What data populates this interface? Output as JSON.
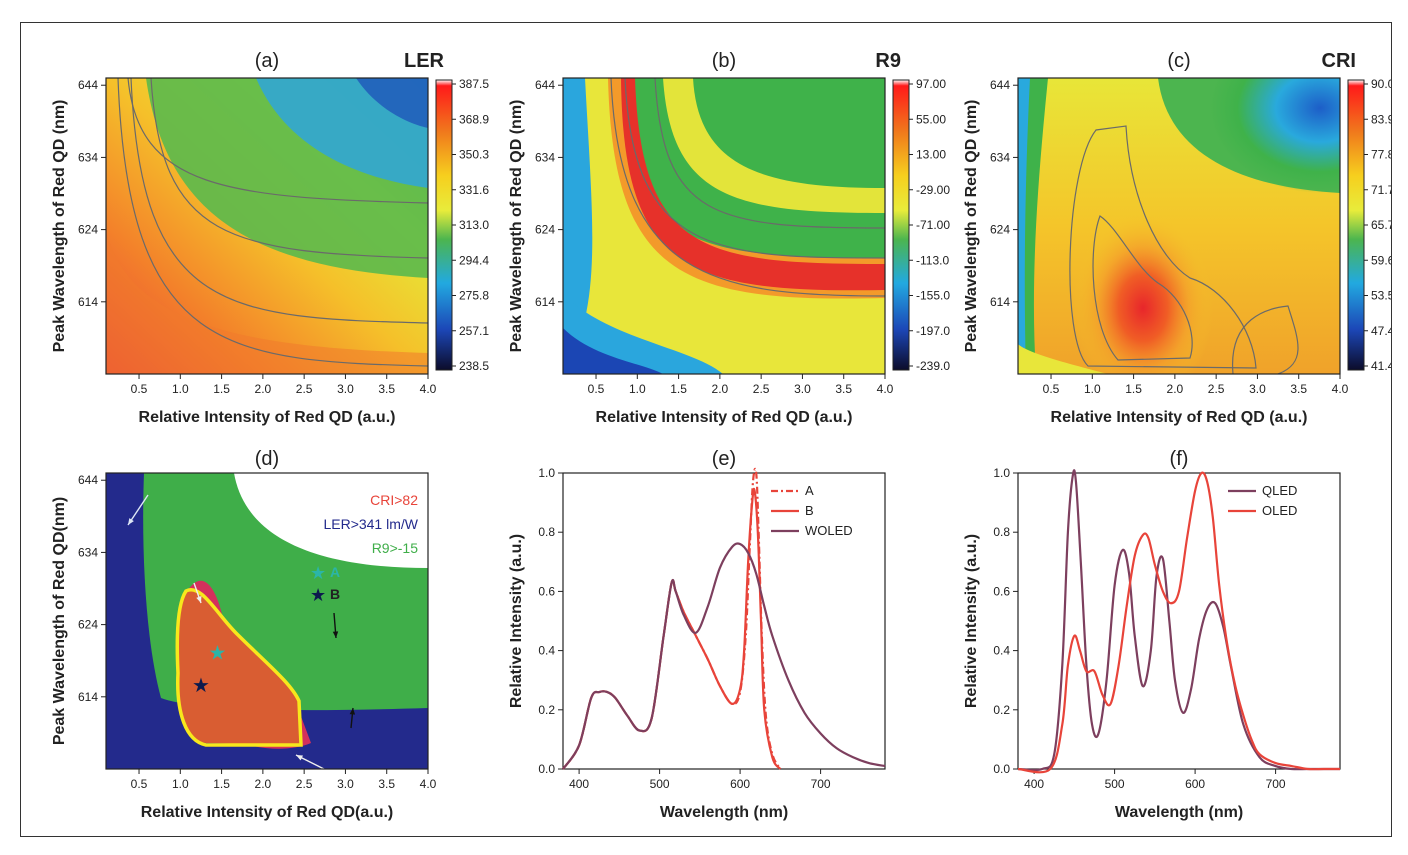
{
  "colors": {
    "red": "#e8443a",
    "purple": "#7d3f5e",
    "white_region": "#ffffff",
    "blue_region": "#232a8c",
    "green_region": "#3fae49",
    "orange_region": "#d95d32",
    "pink_region": "#d4305c",
    "outline": "#f7e81c",
    "star_a": "#2bb5a8",
    "star_b": "#0c1a4d"
  },
  "chart_data": [
    {
      "id": "a",
      "type": "heatmap",
      "panel_label": "(a)",
      "title": "LER",
      "xlabel": "Relative Intensity of Red QD (a.u.)",
      "ylabel": "Peak Wavelength of Red QD (nm)",
      "xlim": [
        0.1,
        4.0
      ],
      "ylim": [
        604,
        645
      ],
      "x_ticks": [
        "0.5",
        "1.0",
        "1.5",
        "2.0",
        "2.5",
        "3.0",
        "3.5",
        "4.0"
      ],
      "y_ticks": [
        "614",
        "624",
        "634",
        "644"
      ],
      "colorbar_ticks": [
        "387.5",
        "368.9",
        "350.3",
        "331.6",
        "313.0",
        "294.4",
        "275.8",
        "257.1",
        "238.5"
      ]
    },
    {
      "id": "b",
      "type": "heatmap",
      "panel_label": "(b)",
      "title": "R9",
      "xlabel": "Relative Intensity of Red QD (a.u.)",
      "ylabel": "Peak Wavelength of Red QD (nm)",
      "xlim": [
        0.1,
        4.0
      ],
      "ylim": [
        604,
        645
      ],
      "x_ticks": [
        "0.5",
        "1.0",
        "1.5",
        "2.0",
        "2.5",
        "3.0",
        "3.5",
        "4.0"
      ],
      "y_ticks": [
        "614",
        "624",
        "634",
        "644"
      ],
      "colorbar_ticks": [
        "97.00",
        "55.00",
        "13.00",
        "-29.00",
        "-71.00",
        "-113.0",
        "-155.0",
        "-197.0",
        "-239.0"
      ]
    },
    {
      "id": "c",
      "type": "heatmap",
      "panel_label": "(c)",
      "title": "CRI",
      "xlabel": "Relative Intensity of Red QD (a.u.)",
      "ylabel": "Peak Wavelength of Red QD (nm)",
      "xlim": [
        0.1,
        4.0
      ],
      "ylim": [
        604,
        645
      ],
      "x_ticks": [
        "0.5",
        "1.0",
        "1.5",
        "2.0",
        "2.5",
        "3.0",
        "3.5",
        "4.0"
      ],
      "y_ticks": [
        "614",
        "624",
        "634",
        "644"
      ],
      "colorbar_ticks": [
        "90.00",
        "83.93",
        "77.85",
        "71.78",
        "65.70",
        "59.63",
        "53.55",
        "47.48",
        "41.40"
      ]
    },
    {
      "id": "d",
      "type": "area",
      "panel_label": "(d)",
      "xlabel": "Relative Intensity of Red QD(a.u.)",
      "ylabel": "Peak Wavelength of Red QD(nm)",
      "xlim": [
        0.1,
        4.0
      ],
      "ylim": [
        604,
        645
      ],
      "x_ticks": [
        "0.5",
        "1.0",
        "1.5",
        "2.0",
        "2.5",
        "3.0",
        "3.5",
        "4.0"
      ],
      "y_ticks": [
        "614",
        "624",
        "634",
        "644"
      ],
      "legend": [
        {
          "label": "CRI>82",
          "color": "#e8443a"
        },
        {
          "label": "LER>341 lm/W",
          "color": "#232a8c"
        },
        {
          "label": "R9>-15",
          "color": "#3fae49"
        },
        {
          "label": "A",
          "color": "#2bb5a8"
        },
        {
          "label": "B",
          "color": "#0c1a4d"
        }
      ],
      "points": [
        {
          "name": "A",
          "x": 1.45,
          "y": 620
        },
        {
          "name": "B",
          "x": 1.25,
          "y": 615.5
        }
      ],
      "legend_position": "top-right"
    },
    {
      "id": "e",
      "type": "line",
      "panel_label": "(e)",
      "xlabel": "Wavelength (nm)",
      "ylabel": "Relative Intensity (a.u.)",
      "xlim": [
        380,
        780
      ],
      "ylim": [
        0,
        1.0
      ],
      "x_ticks": [
        "400",
        "500",
        "600",
        "700"
      ],
      "y_ticks": [
        "0.0",
        "0.2",
        "0.4",
        "0.6",
        "0.8",
        "1.0"
      ],
      "legend_position": "top-right",
      "series": [
        {
          "name": "A",
          "color": "#e8443a",
          "style": "dashdot",
          "x": [
            380,
            400,
            415,
            425,
            435,
            445,
            460,
            475,
            490,
            505,
            515,
            520,
            530,
            545,
            560,
            575,
            590,
            600,
            607,
            612,
            616,
            620,
            623,
            627,
            632,
            640,
            650
          ],
          "y": [
            0.0,
            0.08,
            0.24,
            0.26,
            0.26,
            0.24,
            0.18,
            0.13,
            0.17,
            0.45,
            0.63,
            0.6,
            0.53,
            0.45,
            0.37,
            0.28,
            0.22,
            0.26,
            0.45,
            0.75,
            0.97,
            1.0,
            0.8,
            0.45,
            0.18,
            0.05,
            0.0
          ]
        },
        {
          "name": "B",
          "color": "#e8443a",
          "style": "solid",
          "x": [
            380,
            400,
            415,
            425,
            435,
            445,
            460,
            475,
            490,
            505,
            515,
            520,
            530,
            545,
            560,
            575,
            590,
            600,
            605,
            610,
            615,
            618,
            622,
            626,
            630,
            640,
            650
          ],
          "y": [
            0.0,
            0.08,
            0.24,
            0.26,
            0.26,
            0.24,
            0.18,
            0.13,
            0.17,
            0.45,
            0.63,
            0.6,
            0.53,
            0.45,
            0.37,
            0.28,
            0.22,
            0.27,
            0.4,
            0.7,
            0.9,
            0.94,
            0.8,
            0.5,
            0.2,
            0.04,
            0.0
          ]
        },
        {
          "name": "WOLED",
          "color": "#7d3f5e",
          "style": "solid",
          "x": [
            380,
            400,
            415,
            425,
            435,
            445,
            460,
            475,
            490,
            505,
            515,
            520,
            530,
            545,
            560,
            575,
            590,
            600,
            610,
            620,
            630,
            640,
            660,
            680,
            700,
            720,
            740,
            760,
            780
          ],
          "y": [
            0.0,
            0.08,
            0.24,
            0.26,
            0.26,
            0.24,
            0.18,
            0.13,
            0.17,
            0.45,
            0.63,
            0.6,
            0.52,
            0.46,
            0.55,
            0.68,
            0.75,
            0.76,
            0.73,
            0.66,
            0.55,
            0.45,
            0.3,
            0.19,
            0.12,
            0.07,
            0.04,
            0.02,
            0.01
          ]
        }
      ]
    },
    {
      "id": "f",
      "type": "line",
      "panel_label": "(f)",
      "xlabel": "Wavelength (nm)",
      "ylabel": "Relative Intensity (a.u.)",
      "xlim": [
        380,
        780
      ],
      "ylim": [
        0,
        1.0
      ],
      "x_ticks": [
        "400",
        "500",
        "600",
        "700"
      ],
      "y_ticks": [
        "0.0",
        "0.2",
        "0.4",
        "0.6",
        "0.8",
        "1.0"
      ],
      "legend_position": "top-right",
      "series": [
        {
          "name": "QLED",
          "color": "#7d3f5e",
          "style": "solid",
          "x": [
            380,
            410,
            425,
            435,
            442,
            448,
            452,
            458,
            465,
            472,
            480,
            490,
            500,
            510,
            518,
            525,
            535,
            545,
            552,
            560,
            568,
            575,
            585,
            595,
            605,
            615,
            625,
            635,
            645,
            660,
            680,
            700,
            720,
            740,
            760,
            780
          ],
          "y": [
            0.0,
            0.0,
            0.05,
            0.35,
            0.8,
            0.99,
            0.97,
            0.7,
            0.35,
            0.15,
            0.12,
            0.3,
            0.62,
            0.74,
            0.66,
            0.45,
            0.28,
            0.4,
            0.65,
            0.71,
            0.5,
            0.3,
            0.19,
            0.27,
            0.44,
            0.54,
            0.56,
            0.48,
            0.34,
            0.15,
            0.04,
            0.01,
            0.0,
            0.0,
            0.0,
            0.0
          ]
        },
        {
          "name": "OLED",
          "color": "#e8443a",
          "style": "solid",
          "x": [
            380,
            420,
            435,
            442,
            450,
            457,
            465,
            475,
            485,
            495,
            505,
            515,
            525,
            535,
            542,
            550,
            560,
            570,
            580,
            590,
            600,
            608,
            615,
            622,
            630,
            640,
            650,
            660,
            670,
            680,
            700,
            720,
            740,
            760,
            780
          ],
          "y": [
            0.0,
            0.0,
            0.15,
            0.35,
            0.45,
            0.4,
            0.33,
            0.33,
            0.25,
            0.22,
            0.35,
            0.55,
            0.72,
            0.79,
            0.78,
            0.69,
            0.6,
            0.56,
            0.6,
            0.78,
            0.94,
            1.0,
            0.97,
            0.85,
            0.62,
            0.42,
            0.28,
            0.18,
            0.1,
            0.05,
            0.02,
            0.01,
            0.0,
            0.0,
            0.0
          ]
        }
      ]
    }
  ]
}
